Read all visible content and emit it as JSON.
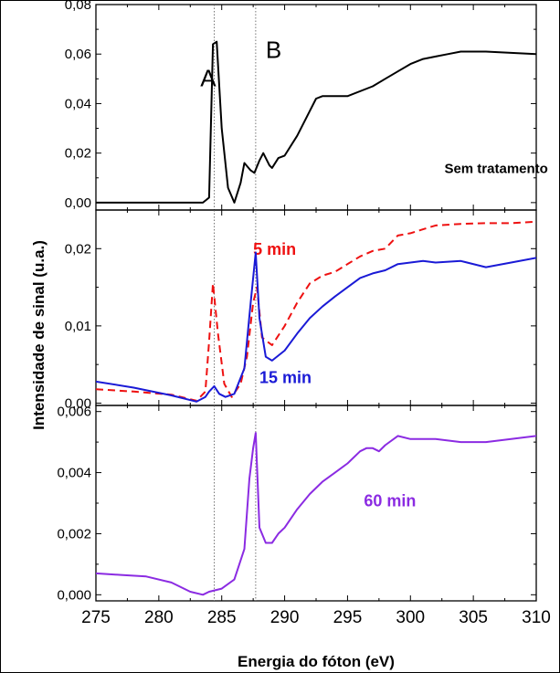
{
  "chart_data": {
    "type": "line",
    "xlabel": "Energia do fóton (eV)",
    "ylabel": "Intensidade de sinal (u.a.)",
    "xlim": [
      275,
      310
    ],
    "x_ticks": [
      "275",
      "280",
      "285",
      "290",
      "295",
      "300",
      "305",
      "310"
    ],
    "x_tick_values": [
      275,
      280,
      285,
      290,
      295,
      300,
      305,
      310
    ],
    "reference_lines_x": [
      284.4,
      287.7
    ],
    "grid": false,
    "panels": [
      {
        "ylim": [
          -0.003,
          0.08
        ],
        "y_ticks": [
          "0,00",
          "0,02",
          "0,04",
          "0,06",
          "0,08"
        ],
        "y_tick_values": [
          0,
          0.02,
          0.04,
          0.06,
          0.08
        ],
        "annotations": [
          {
            "text": "A",
            "x": 283.3,
            "y": 0.047
          },
          {
            "text": "B",
            "x": 288.5,
            "y": 0.0585
          }
        ],
        "series": [
          {
            "name": "Sem tratamento",
            "color": "#000000",
            "dash": "solid",
            "label_pos": {
              "x": 302.7,
              "y": 0.012
            },
            "points": [
              [
                275,
                0.0
              ],
              [
                282,
                0.0
              ],
              [
                283.5,
                0.0
              ],
              [
                284,
                0.002
              ],
              [
                284.3,
                0.064
              ],
              [
                284.6,
                0.065
              ],
              [
                285,
                0.03
              ],
              [
                285.5,
                0.006
              ],
              [
                286,
                0.0
              ],
              [
                286.5,
                0.008
              ],
              [
                286.8,
                0.016
              ],
              [
                287.3,
                0.013
              ],
              [
                287.6,
                0.012
              ],
              [
                288,
                0.017
              ],
              [
                288.3,
                0.02
              ],
              [
                288.8,
                0.015
              ],
              [
                289,
                0.014
              ],
              [
                289.5,
                0.018
              ],
              [
                290,
                0.019
              ],
              [
                291,
                0.027
              ],
              [
                292,
                0.037
              ],
              [
                292.5,
                0.042
              ],
              [
                293,
                0.043
              ],
              [
                294,
                0.043
              ],
              [
                295,
                0.043
              ],
              [
                297,
                0.047
              ],
              [
                298,
                0.05
              ],
              [
                299,
                0.053
              ],
              [
                300,
                0.056
              ],
              [
                301,
                0.058
              ],
              [
                302,
                0.059
              ],
              [
                303,
                0.06
              ],
              [
                304,
                0.061
              ],
              [
                306,
                0.061
              ],
              [
                308,
                0.0605
              ],
              [
                310,
                0.06
              ]
            ]
          }
        ]
      },
      {
        "ylim": [
          -0.0003,
          0.025
        ],
        "y_ticks": [
          "0,00",
          "0,01",
          "0,02"
        ],
        "y_tick_values": [
          0,
          0.01,
          0.02
        ],
        "series": [
          {
            "name": "5 min",
            "color": "#ee1111",
            "dash": "dashed",
            "label_pos": {
              "x": 287.5,
              "y": 0.0192
            },
            "points": [
              [
                275,
                0.0018
              ],
              [
                278,
                0.0015
              ],
              [
                281,
                0.0011
              ],
              [
                283,
                0.0003
              ],
              [
                283.7,
                0.0015
              ],
              [
                284,
                0.008
              ],
              [
                284.3,
                0.0155
              ],
              [
                284.7,
                0.009
              ],
              [
                285.2,
                0.0025
              ],
              [
                285.8,
                0.0008
              ],
              [
                286.5,
                0.0025
              ],
              [
                287,
                0.006
              ],
              [
                287.5,
                0.013
              ],
              [
                287.8,
                0.015
              ],
              [
                288.2,
                0.0085
              ],
              [
                289,
                0.0075
              ],
              [
                290,
                0.01
              ],
              [
                291,
                0.013
              ],
              [
                292,
                0.0155
              ],
              [
                293,
                0.0165
              ],
              [
                294,
                0.017
              ],
              [
                295,
                0.018
              ],
              [
                296,
                0.019
              ],
              [
                297,
                0.0197
              ],
              [
                298,
                0.02
              ],
              [
                299,
                0.0217
              ],
              [
                300,
                0.022
              ],
              [
                301,
                0.0225
              ],
              [
                302,
                0.023
              ],
              [
                304,
                0.0232
              ],
              [
                306,
                0.0233
              ],
              [
                308,
                0.0233
              ],
              [
                310,
                0.0235
              ]
            ]
          },
          {
            "name": "15 min",
            "color": "#1a1ad6",
            "dash": "solid",
            "label_pos": {
              "x": 288.0,
              "y": 0.0026
            },
            "points": [
              [
                275,
                0.0028
              ],
              [
                278,
                0.002
              ],
              [
                281,
                0.001
              ],
              [
                283,
                0.0002
              ],
              [
                283.7,
                0.0008
              ],
              [
                284,
                0.0015
              ],
              [
                284.4,
                0.0022
              ],
              [
                284.8,
                0.0012
              ],
              [
                285.3,
                0.0008
              ],
              [
                286,
                0.0012
              ],
              [
                286.8,
                0.0045
              ],
              [
                287.3,
                0.013
              ],
              [
                287.7,
                0.0195
              ],
              [
                288,
                0.011
              ],
              [
                288.5,
                0.006
              ],
              [
                289,
                0.0055
              ],
              [
                290,
                0.0068
              ],
              [
                291,
                0.009
              ],
              [
                292,
                0.011
              ],
              [
                293,
                0.0125
              ],
              [
                294,
                0.0138
              ],
              [
                295,
                0.015
              ],
              [
                296,
                0.0162
              ],
              [
                297,
                0.0168
              ],
              [
                298,
                0.0172
              ],
              [
                299,
                0.018
              ],
              [
                300,
                0.0182
              ],
              [
                301,
                0.0184
              ],
              [
                302,
                0.0182
              ],
              [
                304,
                0.0184
              ],
              [
                306,
                0.0176
              ],
              [
                308,
                0.0182
              ],
              [
                310,
                0.0188
              ]
            ]
          }
        ]
      },
      {
        "ylim": [
          -0.0002,
          0.0062
        ],
        "y_ticks": [
          "0,000",
          "0,002",
          "0,004",
          "0,006"
        ],
        "y_tick_values": [
          0,
          0.002,
          0.004,
          0.006
        ],
        "series": [
          {
            "name": "60 min",
            "color": "#8b2be2",
            "dash": "solid",
            "label_pos": {
              "x": 296.3,
              "y": 0.0029
            },
            "points": [
              [
                275,
                0.0007
              ],
              [
                277,
                0.00065
              ],
              [
                279,
                0.0006
              ],
              [
                281,
                0.0004
              ],
              [
                282.5,
                0.0001
              ],
              [
                283.5,
                0.0
              ],
              [
                284,
                0.0001
              ],
              [
                285,
                0.0002
              ],
              [
                286,
                0.0005
              ],
              [
                286.8,
                0.0015
              ],
              [
                287.2,
                0.0038
              ],
              [
                287.5,
                0.0048
              ],
              [
                287.7,
                0.0053
              ],
              [
                288,
                0.0022
              ],
              [
                288.5,
                0.0017
              ],
              [
                289,
                0.0017
              ],
              [
                289.5,
                0.002
              ],
              [
                290,
                0.0022
              ],
              [
                291,
                0.0028
              ],
              [
                292,
                0.0033
              ],
              [
                293,
                0.0037
              ],
              [
                294,
                0.004
              ],
              [
                295,
                0.0043
              ],
              [
                296,
                0.0047
              ],
              [
                296.5,
                0.0048
              ],
              [
                297,
                0.0048
              ],
              [
                297.5,
                0.0047
              ],
              [
                298,
                0.0049
              ],
              [
                299,
                0.0052
              ],
              [
                300,
                0.0051
              ],
              [
                302,
                0.0051
              ],
              [
                304,
                0.005
              ],
              [
                306,
                0.005
              ],
              [
                308,
                0.0051
              ],
              [
                310,
                0.0052
              ]
            ]
          }
        ]
      }
    ]
  }
}
